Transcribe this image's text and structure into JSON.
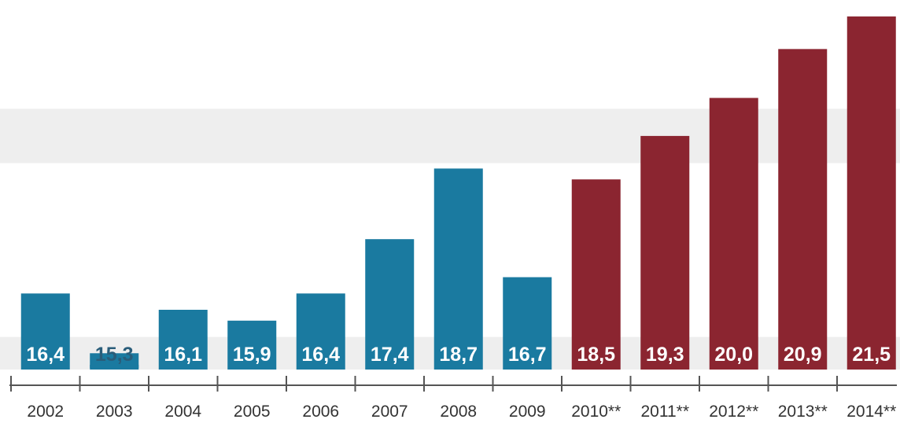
{
  "chart_data": {
    "type": "bar",
    "title": "",
    "xlabel": "",
    "ylabel": "",
    "ylim": [
      15.0,
      21.6
    ],
    "grid": false,
    "legend": "none",
    "categories": [
      "2002",
      "2003",
      "2004",
      "2005",
      "2006",
      "2007",
      "2008",
      "2009",
      "2010**",
      "2011**",
      "2012**",
      "2013**",
      "2014**"
    ],
    "values": [
      16.4,
      15.3,
      16.1,
      15.9,
      16.4,
      17.4,
      18.7,
      16.7,
      18.5,
      19.3,
      20.0,
      20.9,
      21.5
    ],
    "value_labels": [
      "16,4",
      "15,3",
      "16,1",
      "15,9",
      "16,4",
      "17,4",
      "18,7",
      "16,7",
      "18,5",
      "19,3",
      "20,0",
      "20,9",
      "21,5"
    ],
    "bar_colors": [
      "#1a7aa0",
      "#1a7aa0",
      "#1a7aa0",
      "#1a7aa0",
      "#1a7aa0",
      "#1a7aa0",
      "#1a7aa0",
      "#1a7aa0",
      "#8b2530",
      "#8b2530",
      "#8b2530",
      "#8b2530",
      "#8b2530"
    ],
    "background_bands": [
      [
        15.0,
        15.6
      ],
      [
        18.8,
        19.8
      ]
    ],
    "band_color": "#eeeeee",
    "value_label_color": "#ffffff",
    "outside_label_color": "#2a5d7a",
    "axis_color": "#555555",
    "tick_label_color": "#333333"
  }
}
